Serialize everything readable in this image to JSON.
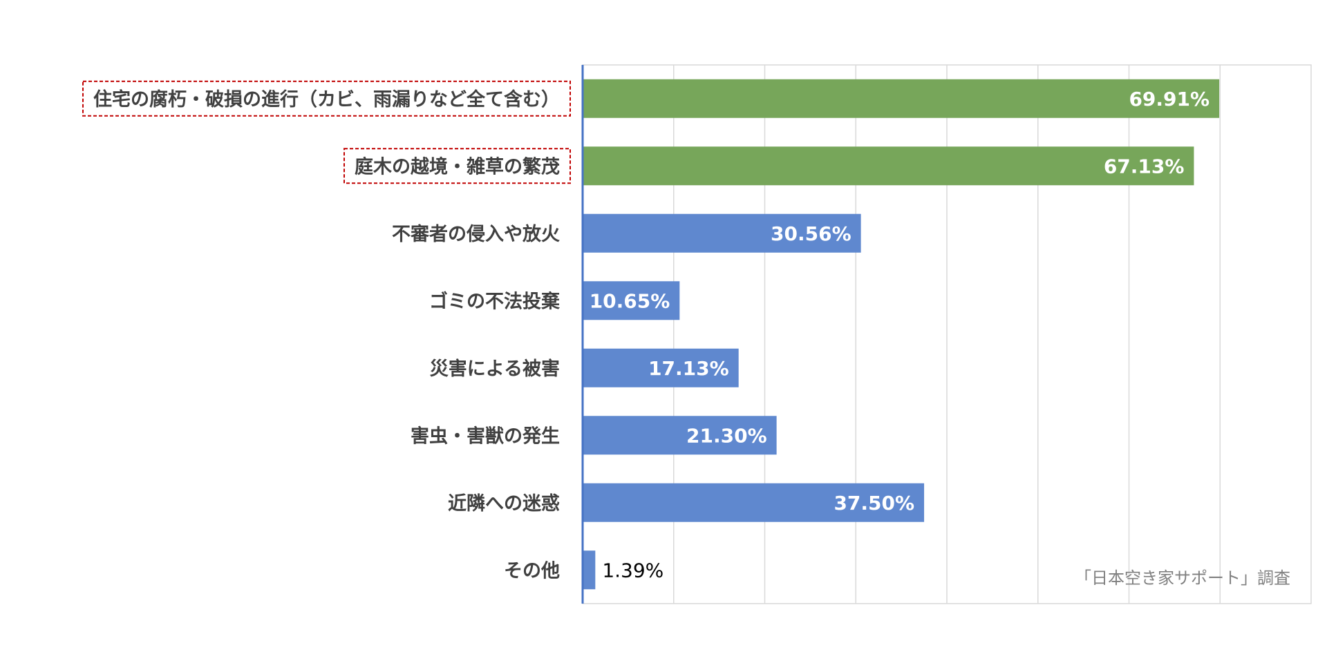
{
  "chart_data": {
    "type": "bar",
    "orientation": "horizontal",
    "title": "",
    "xlabel": "",
    "ylabel": "",
    "categories": [
      "住宅の腐朽・破損の進行（カビ、雨漏りなど全て含む）",
      "庭木の越境・雑草の繁茂",
      "不審者の侵入や放火",
      "ゴミの不法投棄",
      "災害による被害",
      "害虫・害獣の発生",
      "近隣への迷惑",
      "その他"
    ],
    "values": [
      69.91,
      67.13,
      30.56,
      10.65,
      17.13,
      21.3,
      37.5,
      1.39
    ],
    "value_labels": [
      "69.91%",
      "67.13%",
      "30.56%",
      "10.65%",
      "17.13%",
      "21.30%",
      "37.50%",
      "1.39%"
    ],
    "highlighted": [
      true,
      true,
      false,
      false,
      false,
      false,
      false,
      false
    ],
    "xlim": [
      0,
      80
    ],
    "grid_step": 10,
    "grid": true,
    "legend": "none",
    "colors": {
      "highlight": "#77a65a",
      "normal": "#5f88cf",
      "axis": "#4472c4",
      "grid": "#d9d9d9",
      "highlight_box": "#c00000",
      "label_text": "#404040",
      "source_text": "#808080"
    },
    "source_note": "「日本空き家サポート」調査"
  }
}
